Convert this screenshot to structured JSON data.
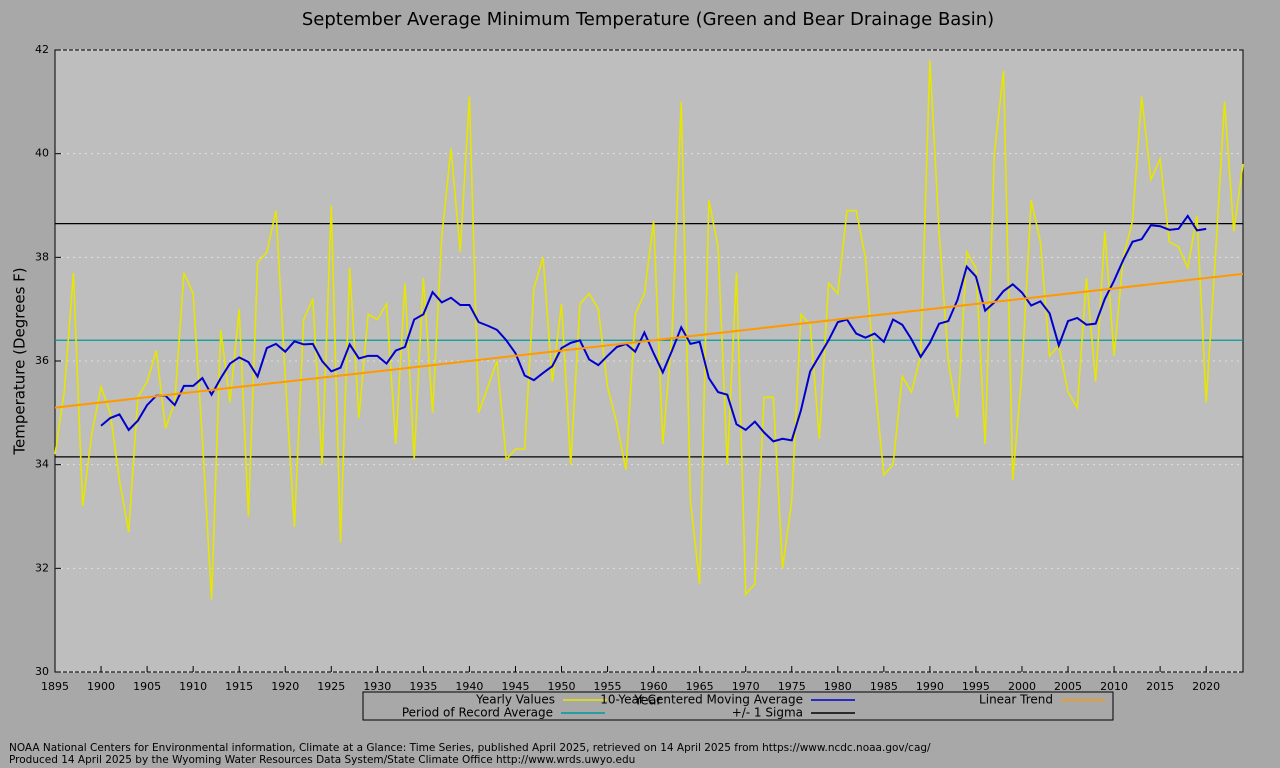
{
  "chart_data": {
    "type": "line",
    "title": "September Average Minimum Temperature (Green and Bear Drainage Basin)",
    "x_label": "Year",
    "y_label": "Temperature (Degrees F)",
    "xlim": [
      1895,
      2024
    ],
    "ylim": [
      30,
      42
    ],
    "xticks": [
      1895,
      1900,
      1905,
      1910,
      1915,
      1920,
      1925,
      1930,
      1935,
      1940,
      1945,
      1950,
      1955,
      1960,
      1965,
      1970,
      1975,
      1980,
      1985,
      1990,
      1995,
      2000,
      2005,
      2010,
      2015,
      2020
    ],
    "yticks": [
      30,
      32,
      34,
      36,
      38,
      40,
      42
    ],
    "grid": true,
    "series": [
      {
        "name": "Yearly Values",
        "color": "#e6e600",
        "x": [
          1895,
          1896,
          1897,
          1898,
          1899,
          1900,
          1901,
          1902,
          1903,
          1904,
          1905,
          1906,
          1907,
          1908,
          1909,
          1910,
          1911,
          1912,
          1913,
          1914,
          1915,
          1916,
          1917,
          1918,
          1919,
          1920,
          1921,
          1922,
          1923,
          1924,
          1925,
          1926,
          1927,
          1928,
          1929,
          1930,
          1931,
          1932,
          1933,
          1934,
          1935,
          1936,
          1937,
          1938,
          1939,
          1940,
          1941,
          1942,
          1943,
          1944,
          1945,
          1946,
          1947,
          1948,
          1949,
          1950,
          1951,
          1952,
          1953,
          1954,
          1955,
          1956,
          1957,
          1958,
          1959,
          1960,
          1961,
          1962,
          1963,
          1964,
          1965,
          1966,
          1967,
          1968,
          1969,
          1970,
          1971,
          1972,
          1973,
          1974,
          1975,
          1976,
          1977,
          1978,
          1979,
          1980,
          1981,
          1982,
          1983,
          1984,
          1985,
          1986,
          1987,
          1988,
          1989,
          1990,
          1991,
          1992,
          1993,
          1994,
          1995,
          1996,
          1997,
          1998,
          1999,
          2000,
          2001,
          2002,
          2003,
          2004,
          2005,
          2006,
          2007,
          2008,
          2009,
          2010,
          2011,
          2012,
          2013,
          2014,
          2015,
          2016,
          2017,
          2018,
          2019,
          2020,
          2021,
          2022,
          2023,
          2024
        ],
        "values": [
          34.2,
          35.4,
          37.7,
          33.2,
          34.6,
          35.5,
          35.0,
          33.7,
          32.7,
          35.3,
          35.6,
          36.2,
          34.7,
          35.2,
          37.7,
          37.3,
          34.5,
          31.4,
          36.6,
          35.2,
          37.0,
          33.0,
          37.9,
          38.1,
          38.9,
          35.7,
          32.8,
          36.8,
          37.2,
          34.0,
          39.0,
          32.5,
          37.8,
          34.9,
          36.9,
          36.8,
          37.1,
          34.4,
          37.5,
          34.1,
          37.6,
          35.0,
          38.4,
          40.1,
          38.1,
          41.1,
          35.0,
          35.5,
          36.0,
          34.1,
          34.3,
          34.3,
          37.4,
          38.0,
          35.6,
          37.1,
          34.0,
          37.1,
          37.3,
          37.0,
          35.5,
          34.8,
          33.9,
          36.9,
          37.3,
          38.7,
          34.4,
          36.5,
          41.0,
          33.3,
          31.7,
          39.1,
          38.2,
          34.0,
          37.7,
          31.5,
          31.7,
          35.3,
          35.3,
          32.0,
          33.3,
          36.9,
          36.7,
          34.5,
          37.5,
          37.3,
          38.9,
          38.9,
          38.0,
          35.6,
          33.8,
          34.0,
          35.7,
          35.4,
          36.1,
          41.8,
          38.5,
          36.0,
          34.9,
          38.1,
          37.8,
          34.4,
          40.0,
          41.6,
          33.7,
          35.8,
          39.1,
          38.3,
          36.1,
          36.3,
          35.4,
          35.1,
          37.6,
          35.6,
          38.5,
          36.1,
          38.0,
          38.7,
          41.1,
          39.5,
          39.9,
          38.3,
          38.2,
          37.8,
          38.8,
          35.2,
          38.0,
          41.0,
          38.5,
          39.8
        ]
      },
      {
        "name": "10-Year Centered Moving Average",
        "color": "#0000cc",
        "x": [
          1900,
          1901,
          1902,
          1903,
          1904,
          1905,
          1906,
          1907,
          1908,
          1909,
          1910,
          1911,
          1912,
          1913,
          1914,
          1915,
          1916,
          1917,
          1918,
          1919,
          1920,
          1921,
          1922,
          1923,
          1924,
          1925,
          1926,
          1927,
          1928,
          1929,
          1930,
          1931,
          1932,
          1933,
          1934,
          1935,
          1936,
          1937,
          1938,
          1939,
          1940,
          1941,
          1942,
          1943,
          1944,
          1945,
          1946,
          1947,
          1948,
          1949,
          1950,
          1951,
          1952,
          1953,
          1954,
          1955,
          1956,
          1957,
          1958,
          1959,
          1960,
          1961,
          1962,
          1963,
          1964,
          1965,
          1966,
          1967,
          1968,
          1969,
          1970,
          1971,
          1972,
          1973,
          1974,
          1975,
          1976,
          1977,
          1978,
          1979,
          1980,
          1981,
          1982,
          1983,
          1984,
          1985,
          1986,
          1987,
          1988,
          1989,
          1990,
          1991,
          1992,
          1993,
          1994,
          1995,
          1996,
          1997,
          1998,
          1999,
          2000,
          2001,
          2002,
          2003,
          2004,
          2005,
          2006,
          2007,
          2008,
          2009,
          2010,
          2011,
          2012,
          2013,
          2014,
          2015,
          2016,
          2017,
          2018,
          2019,
          2020
        ],
        "values": [
          34.75,
          34.9,
          34.97,
          34.67,
          34.85,
          35.15,
          35.33,
          35.33,
          35.15,
          35.52,
          35.52,
          35.67,
          35.35,
          35.67,
          35.95,
          36.07,
          35.98,
          35.7,
          36.25,
          36.33,
          36.18,
          36.38,
          36.32,
          36.33,
          36.0,
          35.8,
          35.87,
          36.32,
          36.05,
          36.1,
          36.1,
          35.95,
          36.2,
          36.27,
          36.8,
          36.9,
          37.33,
          37.13,
          37.22,
          37.08,
          37.08,
          36.75,
          36.68,
          36.6,
          36.4,
          36.15,
          35.72,
          35.63,
          35.77,
          35.9,
          36.25,
          36.35,
          36.4,
          36.03,
          35.92,
          36.1,
          36.27,
          36.33,
          36.18,
          36.55,
          36.15,
          35.78,
          36.2,
          36.65,
          36.33,
          36.37,
          35.67,
          35.4,
          35.35,
          34.78,
          34.67,
          34.83,
          34.62,
          34.45,
          34.5,
          34.47,
          35.05,
          35.8,
          36.1,
          36.4,
          36.75,
          36.8,
          36.53,
          36.45,
          36.53,
          36.37,
          36.8,
          36.7,
          36.42,
          36.08,
          36.35,
          36.72,
          36.77,
          37.18,
          37.82,
          37.63,
          36.97,
          37.13,
          37.35,
          37.48,
          37.32,
          37.07,
          37.15,
          36.92,
          36.3,
          36.77,
          36.83,
          36.7,
          36.72,
          37.2,
          37.55,
          37.95,
          38.3,
          38.35,
          38.62,
          38.6,
          38.53,
          38.55,
          38.8,
          38.52,
          38.55
        ]
      },
      {
        "name": "Linear Trend",
        "color": "#ff9900",
        "x": [
          1895,
          2024
        ],
        "values": [
          35.1,
          37.68
        ]
      }
    ],
    "reference_lines": [
      {
        "name": "Period of Record Average",
        "color": "#009999",
        "values": [
          36.4
        ]
      },
      {
        "name": "+/- 1 Sigma",
        "color": "#000000",
        "values": [
          38.65,
          34.15
        ]
      }
    ],
    "notes": [
      "NOAA National Centers for Environmental information, Climate at a Glance: Time Series, published April 2025, retrieved on 14 April 2025 from https://www.ncdc.noaa.gov/cag/",
      "Produced 14 April 2025 by the Wyoming Water Resources Data System/State Climate Office http://www.wrds.uwyo.edu"
    ]
  }
}
